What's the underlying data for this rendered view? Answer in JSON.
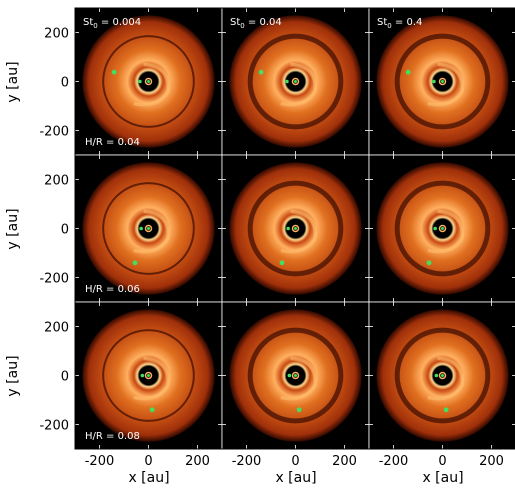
{
  "figure": {
    "xlabel": "x [au]",
    "ylabel": "y [au]",
    "x_ticks": [
      "-200",
      "0",
      "200"
    ],
    "y_ticks": [
      "200",
      "0",
      "-200"
    ],
    "x_tick_values": [
      -200,
      0,
      200
    ],
    "y_tick_values": [
      200,
      0,
      -200
    ],
    "axis_range_au": [
      -300,
      300
    ],
    "columns": [
      {
        "label_base": "St",
        "label_sub": "0",
        "label_value": " = 0.004"
      },
      {
        "label_base": "St",
        "label_sub": "0",
        "label_value": " = 0.04"
      },
      {
        "label_base": "St",
        "label_sub": "0",
        "label_value": " = 0.4"
      }
    ],
    "rows": [
      {
        "label": "H/R = 0.04"
      },
      {
        "label": "H/R = 0.06"
      },
      {
        "label": "H/R = 0.08"
      }
    ],
    "colors": {
      "background": "#000000",
      "disc_outer": "#b03a0e",
      "disc_mid": "#e06a20",
      "disc_bright": "#ffb060",
      "planet": "#40e060"
    }
  }
}
